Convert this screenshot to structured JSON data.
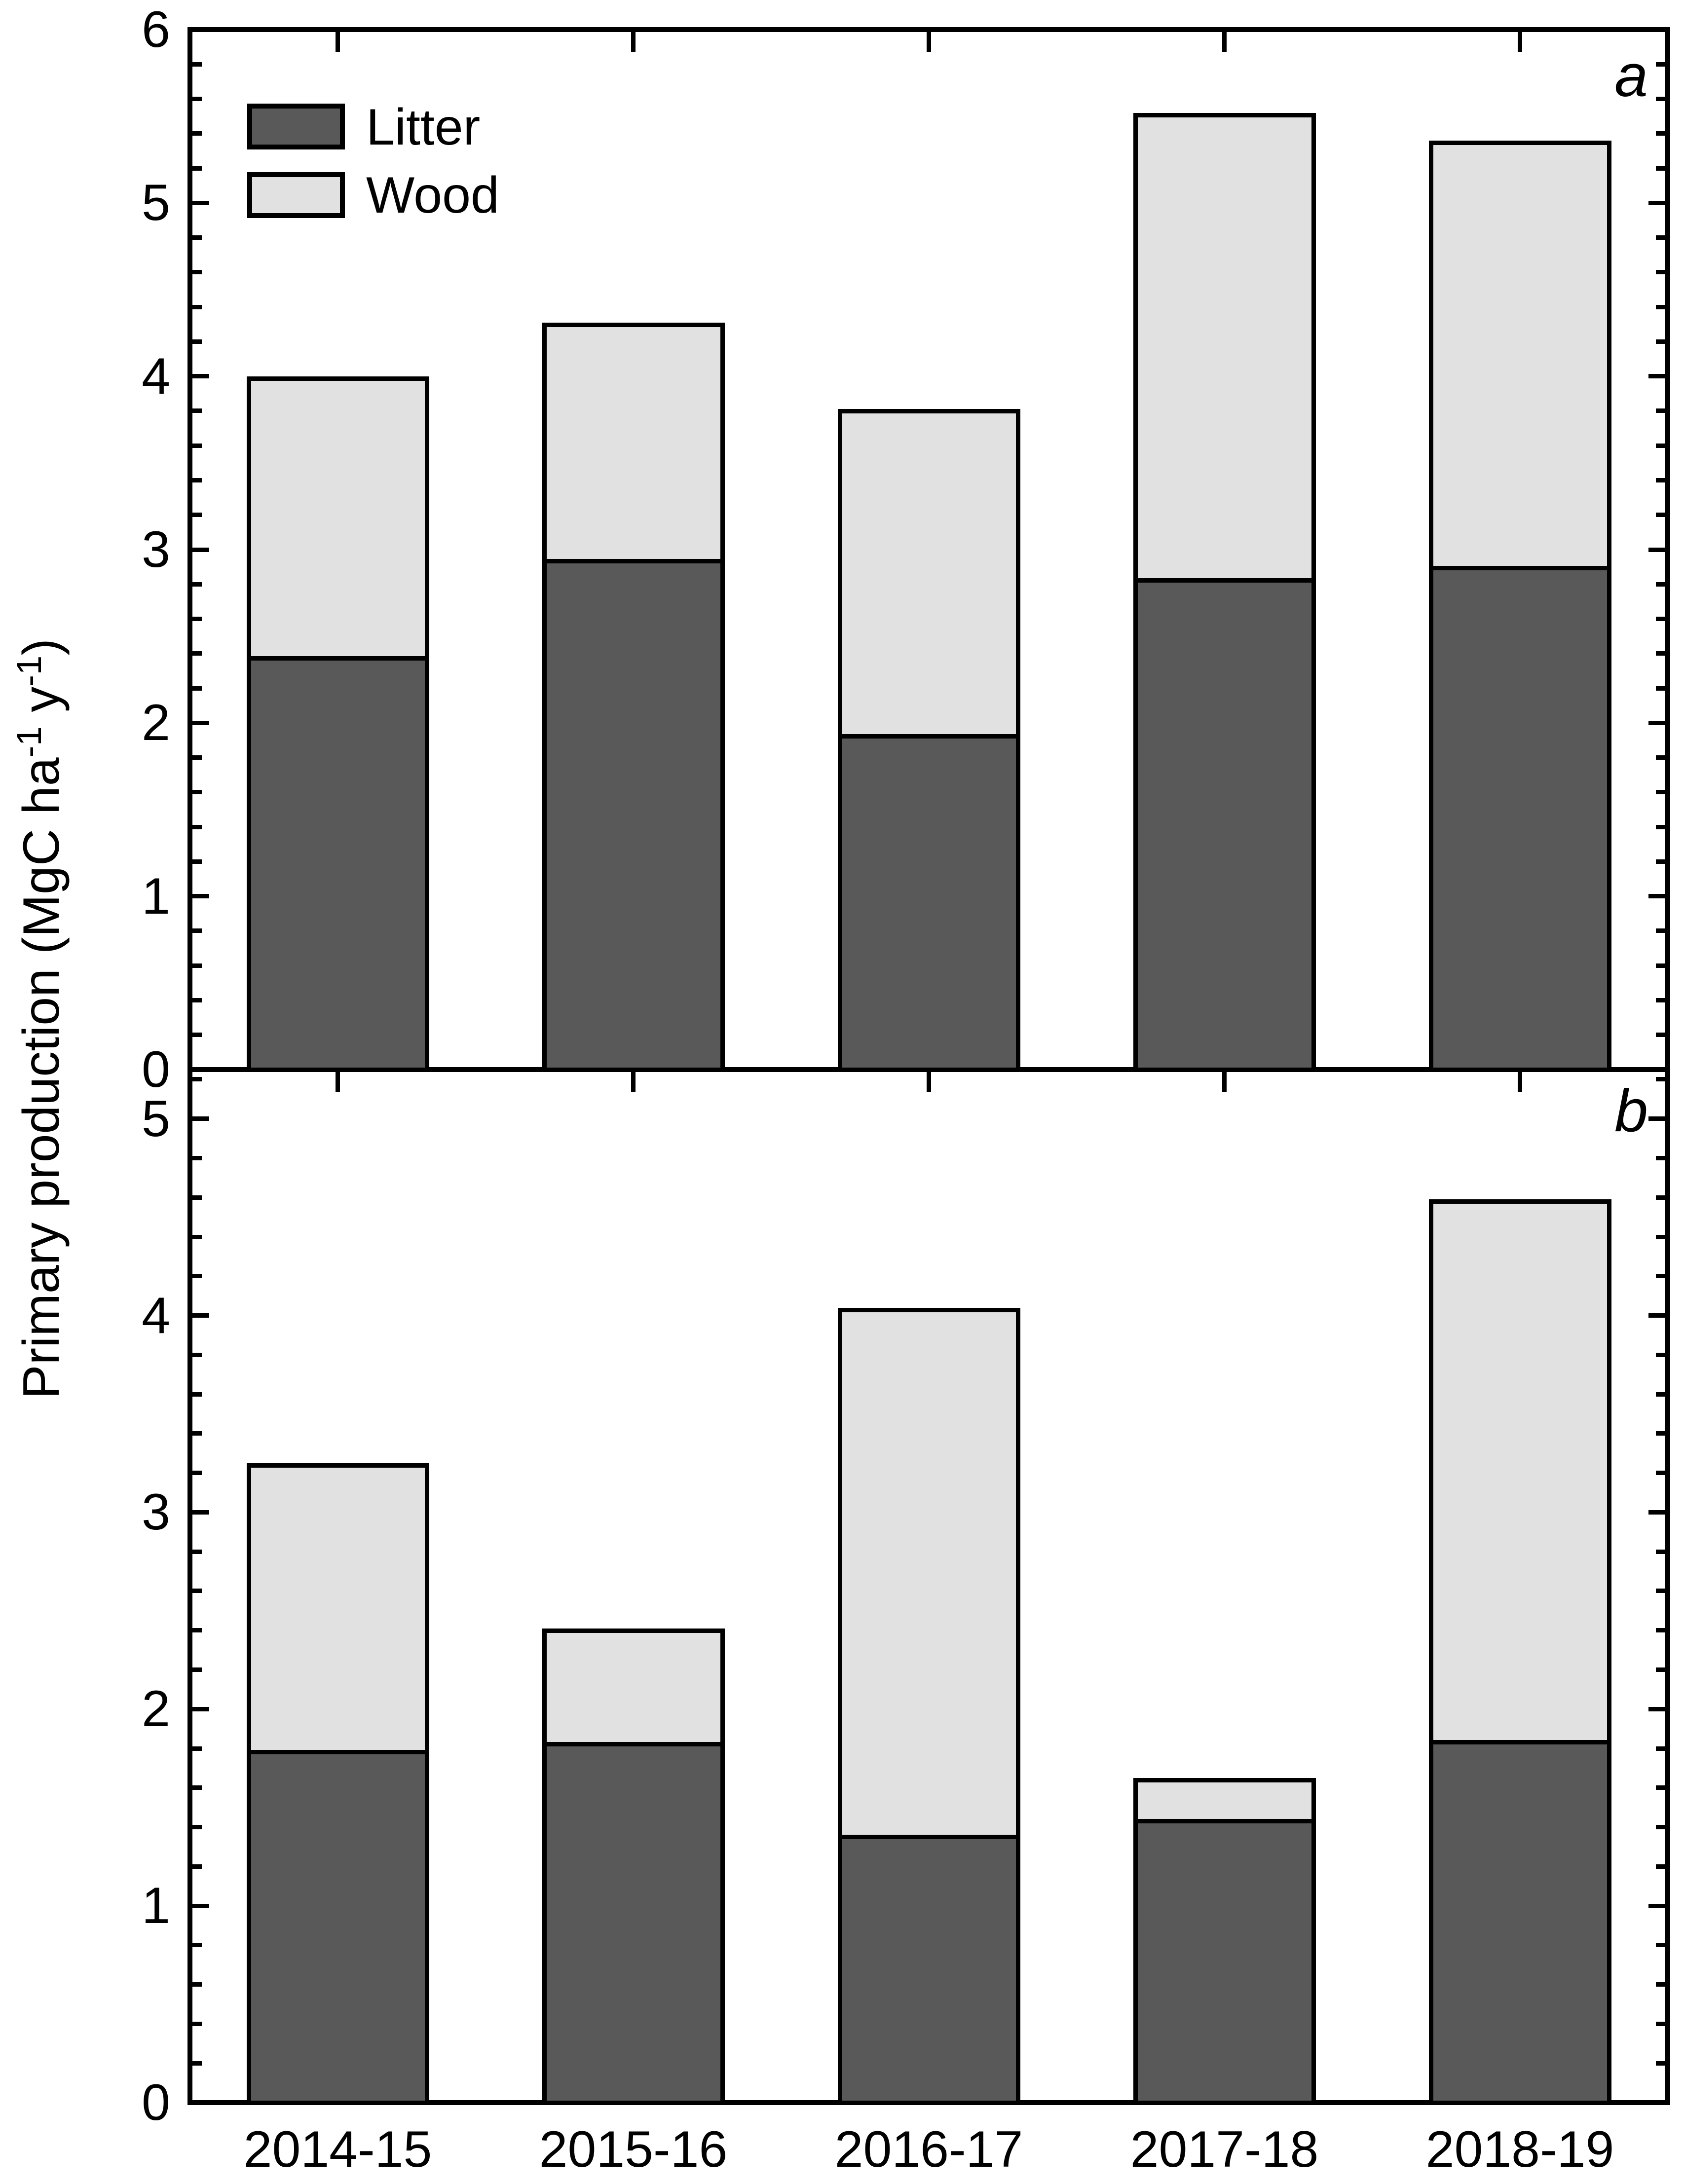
{
  "chart_data": {
    "type": "bar",
    "stacked": true,
    "categories": [
      "2014-15",
      "2015-16",
      "2016-17",
      "2017-18",
      "2018-19"
    ],
    "ylabel": {
      "pre": "Primary production (MgC ha",
      "sup1": "-1",
      "mid": " y",
      "sup2": "-1",
      "post": ")"
    },
    "legend": [
      {
        "label": "Litter",
        "color": "#595959"
      },
      {
        "label": "Wood",
        "color": "#e1e1e1"
      }
    ],
    "grid": "off",
    "legend_position": "top-left-inside-panel-a",
    "panels": [
      {
        "label": "a",
        "ylim": [
          0,
          6
        ],
        "ytick_labels": [
          "0",
          "1",
          "2",
          "3",
          "4",
          "5",
          "6"
        ],
        "minor_tick_step": 0.2,
        "series": [
          {
            "name": "Litter",
            "values": [
              2.36,
              2.92,
              1.91,
              2.81,
              2.88
            ]
          },
          {
            "name": "Wood",
            "values": [
              1.64,
              1.39,
              1.9,
              2.71,
              2.48
            ]
          }
        ],
        "totals": [
          4.0,
          4.31,
          3.81,
          5.52,
          5.36
        ]
      },
      {
        "label": "b",
        "ylim": [
          0,
          5.25
        ],
        "ytick_labels": [
          "0",
          "1",
          "2",
          "3",
          "4",
          "5"
        ],
        "minor_tick_step": 0.2,
        "series": [
          {
            "name": "Litter",
            "values": [
              1.77,
              1.81,
              1.34,
              1.42,
              1.82
            ]
          },
          {
            "name": "Wood",
            "values": [
              1.48,
              0.6,
              2.7,
              0.23,
              2.77
            ]
          }
        ],
        "totals": [
          3.25,
          2.41,
          4.04,
          1.65,
          4.59
        ]
      }
    ]
  }
}
